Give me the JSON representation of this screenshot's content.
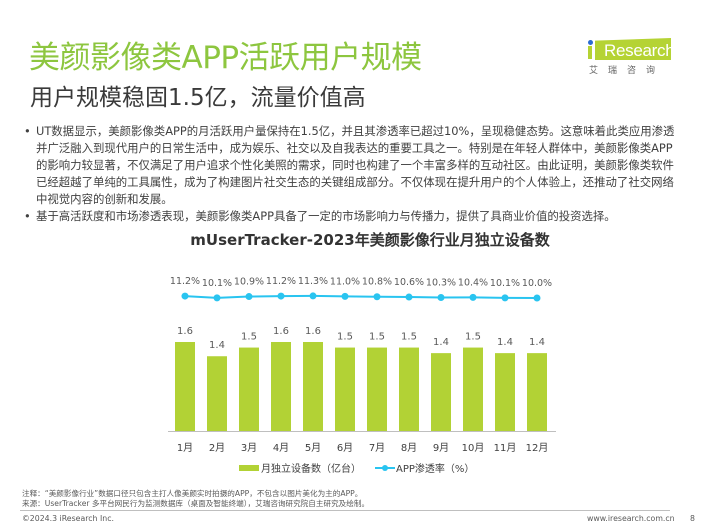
{
  "header": {
    "title": "美颜影像类APP活跃用户规模",
    "subtitle": "用户规模稳固1.5亿，流量价值高",
    "logo_text": "Research",
    "logo_cn": "艾瑞咨询"
  },
  "bullets": [
    {
      "marker": "•",
      "text": "UT数据显示，美颜影像类APP的月活跃用户量保持在1.5亿，并且其渗透率已超过10%，呈现稳健态势。这意味着此类应用渗透并广泛融入到现代用户的日常生活中，成为娱乐、社交以及自我表达的重要工具之一。特别是在年轻人群体中，美颜影像类APP的影响力较显著，不仅满足了用户追求个性化美照的需求，同时也构建了一个丰富多样的互动社区。由此证明，美颜影像类软件已经超越了单纯的工具属性，成为了构建图片社交生态的关键组成部分。不仅体现在提升用户的个人体验上，还推动了社交网络中视觉内容的创新和发展。"
    },
    {
      "marker": "•",
      "text": "基于高活跃度和市场渗透表现，美颜影像类APP具备了一定的市场影响力与传播力，提供了具商业价值的投资选择。"
    }
  ],
  "chart_data": {
    "type": "bar",
    "title": "mUserTracker-2023年美颜影像行业月独立设备数",
    "categories": [
      "1月",
      "2月",
      "3月",
      "4月",
      "5月",
      "6月",
      "7月",
      "8月",
      "9月",
      "10月",
      "11月",
      "12月"
    ],
    "series": [
      {
        "name": "月独立设备数（亿台）",
        "type": "bar",
        "values": [
          1.6,
          1.4,
          1.5,
          1.6,
          1.6,
          1.5,
          1.5,
          1.5,
          1.4,
          1.5,
          1.4,
          1.4
        ],
        "labels": [
          "1.6",
          "1.4",
          "1.5",
          "1.6",
          "1.6",
          "1.5",
          "1.5",
          "1.5",
          "1.4",
          "1.5",
          "1.4",
          "1.4"
        ],
        "color": "#b2d235"
      },
      {
        "name": "APP渗透率（%）",
        "type": "line",
        "values": [
          11.2,
          10.1,
          10.9,
          11.2,
          11.3,
          11.0,
          10.8,
          10.6,
          10.3,
          10.4,
          10.1,
          10.0
        ],
        "labels": [
          "11.2%",
          "10.1%",
          "10.9%",
          "11.2%",
          "11.3%",
          "11.0%",
          "10.8%",
          "10.6%",
          "10.3%",
          "10.4%",
          "10.1%",
          "10.0%"
        ],
        "color": "#29c4f0"
      }
    ],
    "legend_position": "bottom",
    "grid": false,
    "ylabel": "",
    "xlabel": ""
  },
  "notes": {
    "note": "注释：“美颜影像行业”数据口径只包含主打人像美颜实时拍摄的APP，不包含以图片美化为主的APP。",
    "source": "来源：UserTracker 多平台网民行为监测数据库（桌面及智能终端），艾瑞咨询研究院自主研究及绘制。"
  },
  "footer": {
    "copyright": "©2024.3 iResearch Inc.",
    "site": "www.iresearch.com.cn",
    "page": "8"
  }
}
